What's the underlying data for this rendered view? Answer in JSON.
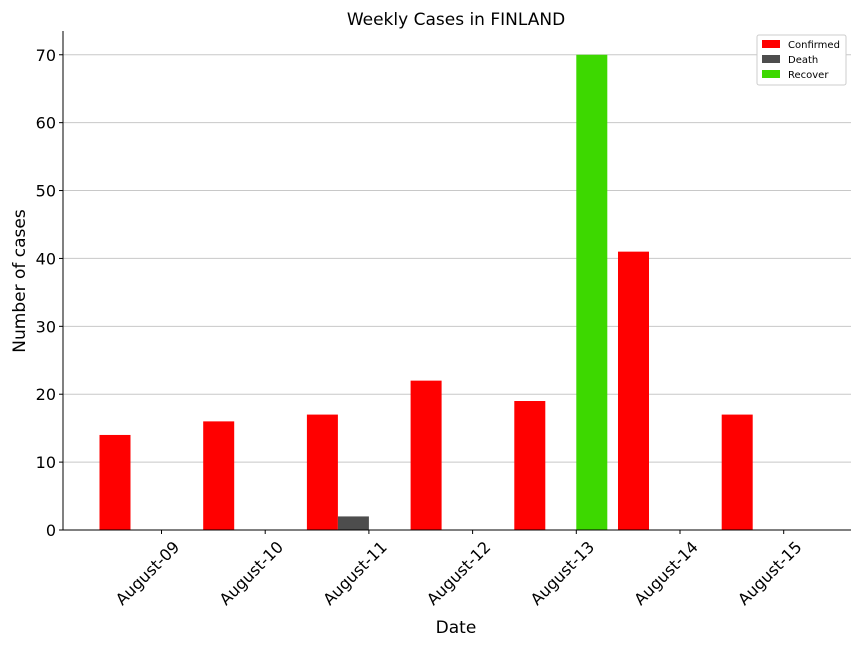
{
  "chart_data": {
    "type": "bar",
    "title": "Weekly Cases in FINLAND",
    "xlabel": "Date",
    "ylabel": "Number of cases",
    "categories": [
      "August-09",
      "August-10",
      "August-11",
      "August-12",
      "August-13",
      "August-14",
      "August-15"
    ],
    "series": [
      {
        "name": "Confirmed",
        "color": "#ff0000",
        "values": [
          14,
          16,
          17,
          22,
          19,
          41,
          17
        ]
      },
      {
        "name": "Death",
        "color": "#4d4d4d",
        "values": [
          0,
          0,
          2,
          0,
          0,
          0,
          0
        ]
      },
      {
        "name": "Recover",
        "color": "#3dd800",
        "values": [
          0,
          0,
          0,
          0,
          70,
          0,
          0
        ]
      }
    ],
    "ylim": [
      0,
      73.5
    ],
    "yticks": [
      0,
      10,
      20,
      30,
      40,
      50,
      60,
      70
    ],
    "grid": "horizontal",
    "legend_position": "top-right"
  }
}
